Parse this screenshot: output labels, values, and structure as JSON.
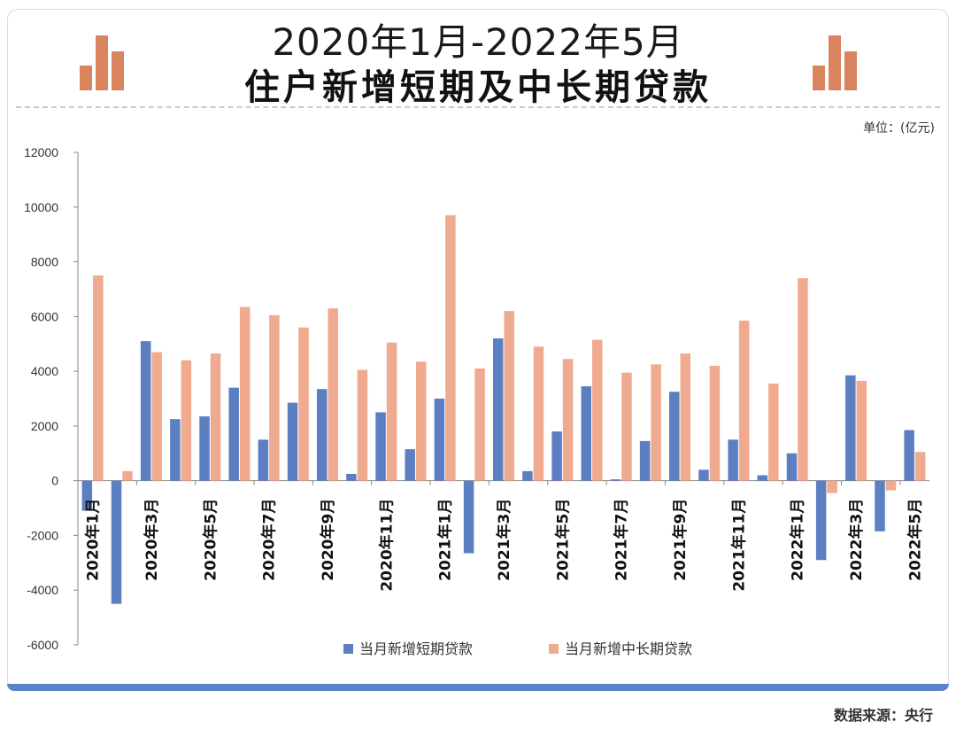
{
  "header": {
    "title_line1": "2020年1月-2022年5月",
    "title_line2": "住户新增短期及中长期贷款",
    "unit": "单位：(亿元)"
  },
  "footer": {
    "source": "数据来源：央行"
  },
  "icons": {
    "left": "bar-chart-icon",
    "right": "bar-chart-icon"
  },
  "colors": {
    "short": "#5b7fc1",
    "long": "#f0aa8f",
    "accent": "#d9845f",
    "frame": "#5b83c6"
  },
  "chart_data": {
    "type": "bar",
    "title": "住户新增短期及中长期贷款",
    "ylim": [
      -6000,
      12000
    ],
    "yticks": [
      12000,
      10000,
      8000,
      6000,
      4000,
      2000,
      0,
      -2000,
      -4000,
      -6000
    ],
    "ytick_labels": [
      "12000",
      "10000",
      "8000",
      "6000",
      "4000",
      "2000",
      "0",
      "-2000",
      "-4000",
      "-6000"
    ],
    "categories": [
      "2020年1月",
      "2020年2月",
      "2020年3月",
      "2020年4月",
      "2020年5月",
      "2020年6月",
      "2020年7月",
      "2020年8月",
      "2020年9月",
      "2020年10月",
      "2020年11月",
      "2020年12月",
      "2021年1月",
      "2021年2月",
      "2021年3月",
      "2021年4月",
      "2021年5月",
      "2021年6月",
      "2021年7月",
      "2021年8月",
      "2021年9月",
      "2021年10月",
      "2021年11月",
      "2021年12月",
      "2022年1月",
      "2022年2月",
      "2022年3月",
      "2022年4月",
      "2022年5月"
    ],
    "shown_labels": [
      "2020年1月",
      "2020年3月",
      "2020年5月",
      "2020年7月",
      "2020年9月",
      "2020年11月",
      "2021年1月",
      "2021年3月",
      "2021年5月",
      "2021年7月",
      "2021年9月",
      "2021年11月",
      "2022年1月",
      "2022年3月",
      "2022年5月"
    ],
    "legend_position": "bottom-center",
    "series": [
      {
        "name": "当月新增短期贷款",
        "values": [
          -1100,
          -4500,
          5100,
          2250,
          2350,
          3400,
          1500,
          2850,
          3350,
          250,
          2500,
          1150,
          3000,
          -2650,
          5200,
          350,
          1800,
          3450,
          50,
          1450,
          3250,
          400,
          1500,
          200,
          1000,
          -2900,
          3850,
          -1850,
          1850
        ]
      },
      {
        "name": "当月新增中长期贷款",
        "values": [
          7500,
          350,
          4700,
          4400,
          4650,
          6350,
          6050,
          5600,
          6300,
          4050,
          5050,
          4350,
          9700,
          4100,
          6200,
          4900,
          4450,
          5150,
          3950,
          4250,
          4650,
          4200,
          5850,
          3550,
          7400,
          -450,
          3650,
          -350,
          1050
        ]
      }
    ]
  }
}
